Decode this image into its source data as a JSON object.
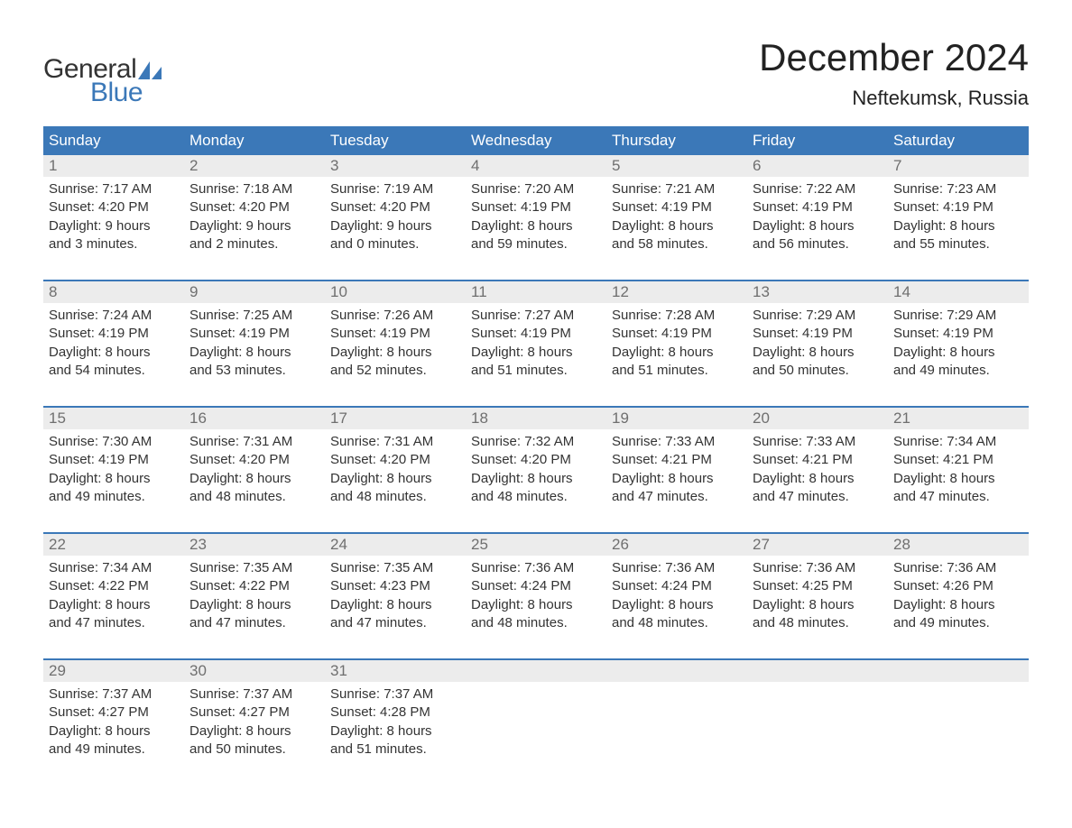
{
  "brand": {
    "word1": "General",
    "word2": "Blue",
    "accent_color": "#3b78b8",
    "text_color": "#333333"
  },
  "title": "December 2024",
  "location": "Neftekumsk, Russia",
  "header_bg": "#3b78b8",
  "header_fg": "#ffffff",
  "daynum_bg": "#ececec",
  "daynum_fg": "#6f6f6f",
  "body_color": "#333333",
  "border_color": "#3b78b8",
  "background_color": "#ffffff",
  "title_fontsize": 42,
  "location_fontsize": 22,
  "weekday_fontsize": 17,
  "body_fontsize": 15,
  "weekdays": [
    "Sunday",
    "Monday",
    "Tuesday",
    "Wednesday",
    "Thursday",
    "Friday",
    "Saturday"
  ],
  "weeks": [
    [
      {
        "n": "1",
        "sr": "Sunrise: 7:17 AM",
        "ss": "Sunset: 4:20 PM",
        "d1": "Daylight: 9 hours",
        "d2": "and 3 minutes."
      },
      {
        "n": "2",
        "sr": "Sunrise: 7:18 AM",
        "ss": "Sunset: 4:20 PM",
        "d1": "Daylight: 9 hours",
        "d2": "and 2 minutes."
      },
      {
        "n": "3",
        "sr": "Sunrise: 7:19 AM",
        "ss": "Sunset: 4:20 PM",
        "d1": "Daylight: 9 hours",
        "d2": "and 0 minutes."
      },
      {
        "n": "4",
        "sr": "Sunrise: 7:20 AM",
        "ss": "Sunset: 4:19 PM",
        "d1": "Daylight: 8 hours",
        "d2": "and 59 minutes."
      },
      {
        "n": "5",
        "sr": "Sunrise: 7:21 AM",
        "ss": "Sunset: 4:19 PM",
        "d1": "Daylight: 8 hours",
        "d2": "and 58 minutes."
      },
      {
        "n": "6",
        "sr": "Sunrise: 7:22 AM",
        "ss": "Sunset: 4:19 PM",
        "d1": "Daylight: 8 hours",
        "d2": "and 56 minutes."
      },
      {
        "n": "7",
        "sr": "Sunrise: 7:23 AM",
        "ss": "Sunset: 4:19 PM",
        "d1": "Daylight: 8 hours",
        "d2": "and 55 minutes."
      }
    ],
    [
      {
        "n": "8",
        "sr": "Sunrise: 7:24 AM",
        "ss": "Sunset: 4:19 PM",
        "d1": "Daylight: 8 hours",
        "d2": "and 54 minutes."
      },
      {
        "n": "9",
        "sr": "Sunrise: 7:25 AM",
        "ss": "Sunset: 4:19 PM",
        "d1": "Daylight: 8 hours",
        "d2": "and 53 minutes."
      },
      {
        "n": "10",
        "sr": "Sunrise: 7:26 AM",
        "ss": "Sunset: 4:19 PM",
        "d1": "Daylight: 8 hours",
        "d2": "and 52 minutes."
      },
      {
        "n": "11",
        "sr": "Sunrise: 7:27 AM",
        "ss": "Sunset: 4:19 PM",
        "d1": "Daylight: 8 hours",
        "d2": "and 51 minutes."
      },
      {
        "n": "12",
        "sr": "Sunrise: 7:28 AM",
        "ss": "Sunset: 4:19 PM",
        "d1": "Daylight: 8 hours",
        "d2": "and 51 minutes."
      },
      {
        "n": "13",
        "sr": "Sunrise: 7:29 AM",
        "ss": "Sunset: 4:19 PM",
        "d1": "Daylight: 8 hours",
        "d2": "and 50 minutes."
      },
      {
        "n": "14",
        "sr": "Sunrise: 7:29 AM",
        "ss": "Sunset: 4:19 PM",
        "d1": "Daylight: 8 hours",
        "d2": "and 49 minutes."
      }
    ],
    [
      {
        "n": "15",
        "sr": "Sunrise: 7:30 AM",
        "ss": "Sunset: 4:19 PM",
        "d1": "Daylight: 8 hours",
        "d2": "and 49 minutes."
      },
      {
        "n": "16",
        "sr": "Sunrise: 7:31 AM",
        "ss": "Sunset: 4:20 PM",
        "d1": "Daylight: 8 hours",
        "d2": "and 48 minutes."
      },
      {
        "n": "17",
        "sr": "Sunrise: 7:31 AM",
        "ss": "Sunset: 4:20 PM",
        "d1": "Daylight: 8 hours",
        "d2": "and 48 minutes."
      },
      {
        "n": "18",
        "sr": "Sunrise: 7:32 AM",
        "ss": "Sunset: 4:20 PM",
        "d1": "Daylight: 8 hours",
        "d2": "and 48 minutes."
      },
      {
        "n": "19",
        "sr": "Sunrise: 7:33 AM",
        "ss": "Sunset: 4:21 PM",
        "d1": "Daylight: 8 hours",
        "d2": "and 47 minutes."
      },
      {
        "n": "20",
        "sr": "Sunrise: 7:33 AM",
        "ss": "Sunset: 4:21 PM",
        "d1": "Daylight: 8 hours",
        "d2": "and 47 minutes."
      },
      {
        "n": "21",
        "sr": "Sunrise: 7:34 AM",
        "ss": "Sunset: 4:21 PM",
        "d1": "Daylight: 8 hours",
        "d2": "and 47 minutes."
      }
    ],
    [
      {
        "n": "22",
        "sr": "Sunrise: 7:34 AM",
        "ss": "Sunset: 4:22 PM",
        "d1": "Daylight: 8 hours",
        "d2": "and 47 minutes."
      },
      {
        "n": "23",
        "sr": "Sunrise: 7:35 AM",
        "ss": "Sunset: 4:22 PM",
        "d1": "Daylight: 8 hours",
        "d2": "and 47 minutes."
      },
      {
        "n": "24",
        "sr": "Sunrise: 7:35 AM",
        "ss": "Sunset: 4:23 PM",
        "d1": "Daylight: 8 hours",
        "d2": "and 47 minutes."
      },
      {
        "n": "25",
        "sr": "Sunrise: 7:36 AM",
        "ss": "Sunset: 4:24 PM",
        "d1": "Daylight: 8 hours",
        "d2": "and 48 minutes."
      },
      {
        "n": "26",
        "sr": "Sunrise: 7:36 AM",
        "ss": "Sunset: 4:24 PM",
        "d1": "Daylight: 8 hours",
        "d2": "and 48 minutes."
      },
      {
        "n": "27",
        "sr": "Sunrise: 7:36 AM",
        "ss": "Sunset: 4:25 PM",
        "d1": "Daylight: 8 hours",
        "d2": "and 48 minutes."
      },
      {
        "n": "28",
        "sr": "Sunrise: 7:36 AM",
        "ss": "Sunset: 4:26 PM",
        "d1": "Daylight: 8 hours",
        "d2": "and 49 minutes."
      }
    ],
    [
      {
        "n": "29",
        "sr": "Sunrise: 7:37 AM",
        "ss": "Sunset: 4:27 PM",
        "d1": "Daylight: 8 hours",
        "d2": "and 49 minutes."
      },
      {
        "n": "30",
        "sr": "Sunrise: 7:37 AM",
        "ss": "Sunset: 4:27 PM",
        "d1": "Daylight: 8 hours",
        "d2": "and 50 minutes."
      },
      {
        "n": "31",
        "sr": "Sunrise: 7:37 AM",
        "ss": "Sunset: 4:28 PM",
        "d1": "Daylight: 8 hours",
        "d2": "and 51 minutes."
      },
      null,
      null,
      null,
      null
    ]
  ]
}
